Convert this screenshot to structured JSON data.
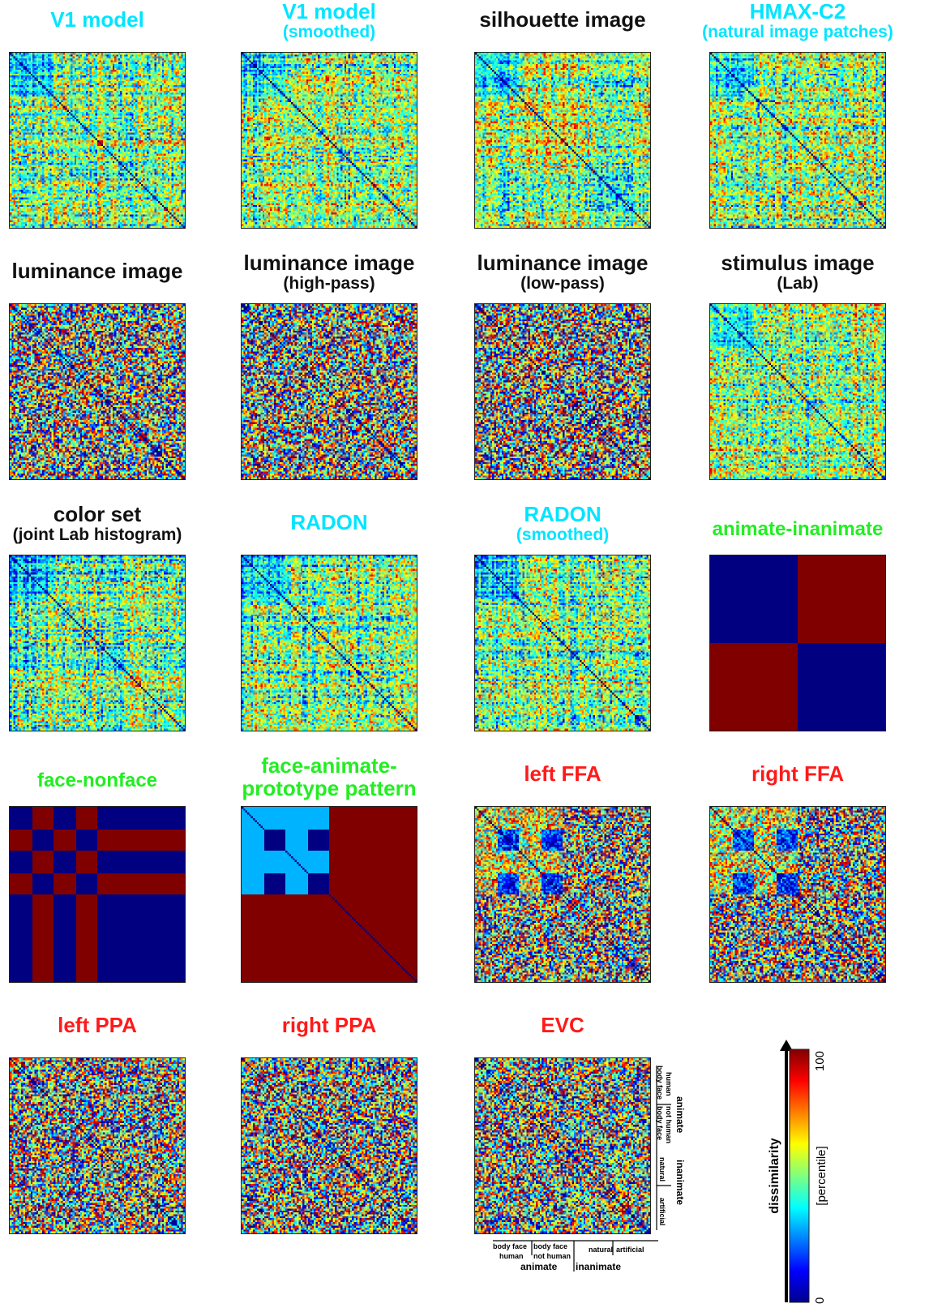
{
  "colors": {
    "cyan": "#00e5ff",
    "black": "#111111",
    "green": "#22ee22",
    "red": "#ff1a1a",
    "jet_low": "#00008f",
    "jet_high": "#800000"
  },
  "panels": [
    {
      "line1": "V1 model",
      "line2": "",
      "color": "cyan",
      "pattern": "noise_struct"
    },
    {
      "line1": "V1 model",
      "line2": "(smoothed)",
      "color": "cyan",
      "pattern": "noise_struct"
    },
    {
      "line1": "silhouette image",
      "line2": "",
      "color": "black",
      "pattern": "noise_struct"
    },
    {
      "line1": "HMAX-C2",
      "line2": "(natural image patches)",
      "color": "cyan",
      "pattern": "noise_struct"
    },
    {
      "line1": "luminance image",
      "line2": "",
      "color": "black",
      "pattern": "noise"
    },
    {
      "line1": "luminance image",
      "line2": "(high-pass)",
      "color": "black",
      "pattern": "noise"
    },
    {
      "line1": "luminance image",
      "line2": "(low-pass)",
      "color": "black",
      "pattern": "noise"
    },
    {
      "line1": "stimulus image",
      "line2": "(Lab)",
      "color": "black",
      "pattern": "noise_struct"
    },
    {
      "line1": "color set",
      "line2": "(joint Lab histogram)",
      "color": "black",
      "pattern": "noise_struct"
    },
    {
      "line1": "RADON",
      "line2": "",
      "color": "cyan",
      "pattern": "noise_struct"
    },
    {
      "line1": "RADON",
      "line2": "(smoothed)",
      "color": "cyan",
      "pattern": "noise_struct"
    },
    {
      "line1": "animate-inanimate",
      "line2": "",
      "color": "green",
      "pattern": "animate_inanimate"
    },
    {
      "line1": "face-nonface",
      "line2": "",
      "color": "green",
      "pattern": "face_nonface"
    },
    {
      "line1": "face-animate-",
      "line2": "prototype pattern",
      "color": "green",
      "pattern": "face_animate_prototype"
    },
    {
      "line1": "left FFA",
      "line2": "",
      "color": "red",
      "pattern": "ffa"
    },
    {
      "line1": "right FFA",
      "line2": "",
      "color": "red",
      "pattern": "ffa"
    },
    {
      "line1": "left PPA",
      "line2": "",
      "color": "red",
      "pattern": "noise"
    },
    {
      "line1": "right PPA",
      "line2": "",
      "color": "red",
      "pattern": "noise"
    },
    {
      "line1": "EVC",
      "line2": "",
      "color": "red",
      "pattern": "noise"
    }
  ],
  "chart_data": {
    "type": "heatmap",
    "matrix_size": 92,
    "colormap": "jet",
    "colorbar": {
      "min_label": "0",
      "max_label": "100",
      "label": "dissimilarity",
      "unit_label": "[percentile]"
    },
    "category_labels": {
      "body": "body",
      "face": "face",
      "human": "human",
      "not_human": "not human",
      "animate": "animate",
      "inanimate": "inanimate",
      "natural": "natural",
      "artificial": "artificial"
    }
  }
}
